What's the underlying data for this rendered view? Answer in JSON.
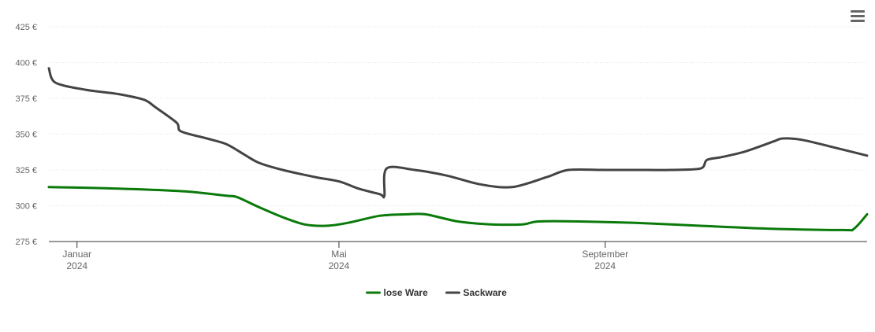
{
  "chart_data": {
    "type": "line",
    "title": "",
    "xlabel": "",
    "ylabel": "",
    "currency": "€",
    "x_range": [
      "2023-12-19",
      "2024-12-31"
    ],
    "ylim": [
      275,
      425
    ],
    "yticks": [
      275,
      300,
      325,
      350,
      375,
      400,
      425
    ],
    "xticks": [
      {
        "date": "2024-01-01",
        "label": "Januar",
        "year": "2024"
      },
      {
        "date": "2024-05-01",
        "label": "Mai",
        "year": "2024"
      },
      {
        "date": "2024-09-01",
        "label": "September",
        "year": "2024"
      }
    ],
    "grid": true,
    "legend": "bottom-center",
    "series": [
      {
        "name": "lose Ware",
        "color": "#0a7a0a",
        "points": [
          [
            "2023-12-19",
            313
          ],
          [
            "2024-01-20",
            312
          ],
          [
            "2024-02-20",
            310
          ],
          [
            "2024-03-10",
            307
          ],
          [
            "2024-03-15",
            306
          ],
          [
            "2024-03-25",
            299
          ],
          [
            "2024-04-05",
            292
          ],
          [
            "2024-04-15",
            287
          ],
          [
            "2024-04-25",
            286
          ],
          [
            "2024-05-05",
            288
          ],
          [
            "2024-05-20",
            293
          ],
          [
            "2024-06-01",
            294
          ],
          [
            "2024-06-10",
            294
          ],
          [
            "2024-06-25",
            289
          ],
          [
            "2024-07-10",
            287
          ],
          [
            "2024-07-25",
            287
          ],
          [
            "2024-08-01",
            289
          ],
          [
            "2024-08-20",
            289
          ],
          [
            "2024-09-15",
            288
          ],
          [
            "2024-10-15",
            286
          ],
          [
            "2024-11-15",
            284
          ],
          [
            "2024-12-20",
            283
          ],
          [
            "2024-12-25",
            284
          ],
          [
            "2024-12-31",
            294
          ]
        ]
      },
      {
        "name": "Sackware",
        "color": "#444444",
        "points": [
          [
            "2023-12-19",
            396
          ],
          [
            "2023-12-22",
            386
          ],
          [
            "2024-01-05",
            381
          ],
          [
            "2024-01-20",
            378
          ],
          [
            "2024-02-01",
            374
          ],
          [
            "2024-02-06",
            369
          ],
          [
            "2024-02-16",
            358
          ],
          [
            "2024-02-18",
            352
          ],
          [
            "2024-03-01",
            347
          ],
          [
            "2024-03-10",
            343
          ],
          [
            "2024-03-18",
            336
          ],
          [
            "2024-03-25",
            330
          ],
          [
            "2024-04-05",
            325
          ],
          [
            "2024-04-20",
            320
          ],
          [
            "2024-05-01",
            317
          ],
          [
            "2024-05-10",
            312
          ],
          [
            "2024-05-20",
            308
          ],
          [
            "2024-05-22",
            307
          ],
          [
            "2024-05-23",
            326
          ],
          [
            "2024-06-05",
            325
          ],
          [
            "2024-06-20",
            321
          ],
          [
            "2024-07-05",
            315
          ],
          [
            "2024-07-20",
            313
          ],
          [
            "2024-08-05",
            320
          ],
          [
            "2024-08-15",
            325
          ],
          [
            "2024-09-01",
            325
          ],
          [
            "2024-09-20",
            325
          ],
          [
            "2024-10-01",
            325
          ],
          [
            "2024-10-15",
            326
          ],
          [
            "2024-10-18",
            332
          ],
          [
            "2024-10-25",
            334
          ],
          [
            "2024-11-05",
            338
          ],
          [
            "2024-11-18",
            345
          ],
          [
            "2024-11-22",
            347
          ],
          [
            "2024-12-01",
            346
          ],
          [
            "2024-12-15",
            341
          ],
          [
            "2024-12-31",
            335
          ]
        ]
      }
    ]
  }
}
